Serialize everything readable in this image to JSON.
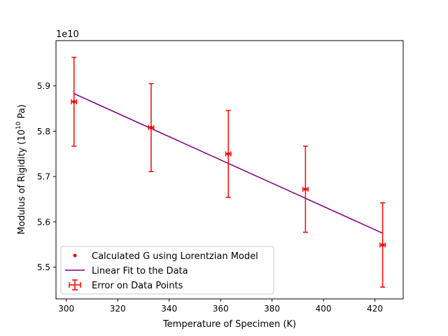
{
  "chart_data": {
    "type": "scatter",
    "xlabel": "Temperature of Specimen (K)",
    "ylabel_prefix": "Modulus of Rigidity (10",
    "ylabel_exp": "10",
    "ylabel_suffix": " Pa)",
    "offset_text": "1e10",
    "xlim": [
      296,
      431
    ],
    "ylim": [
      5.43,
      6.0
    ],
    "x_ticks": [
      300,
      320,
      340,
      360,
      380,
      400,
      420
    ],
    "y_ticks": [
      5.5,
      5.6,
      5.7,
      5.8,
      5.9
    ],
    "series": [
      {
        "name": "Calculated G using Lorentzian Model",
        "kind": "points",
        "color": "#ff0000",
        "x": [
          303,
          333,
          363,
          393,
          423
        ],
        "y": [
          5.865,
          5.808,
          5.75,
          5.672,
          5.549
        ]
      },
      {
        "name": "Linear Fit to the Data",
        "kind": "line",
        "color": "#800080",
        "x": [
          303,
          423
        ],
        "y": [
          5.883,
          5.575
        ]
      },
      {
        "name": "Error on Data Points",
        "kind": "errorbar",
        "color": "#ff0000",
        "x": [
          303,
          333,
          363,
          393,
          423
        ],
        "y": [
          5.865,
          5.808,
          5.75,
          5.672,
          5.549
        ],
        "y_err": [
          0.098,
          0.097,
          0.096,
          0.095,
          0.093
        ],
        "x_err": [
          1.0,
          1.0,
          1.0,
          1.0,
          1.0
        ]
      }
    ],
    "legend_position": "lower-left",
    "grid": false
  }
}
